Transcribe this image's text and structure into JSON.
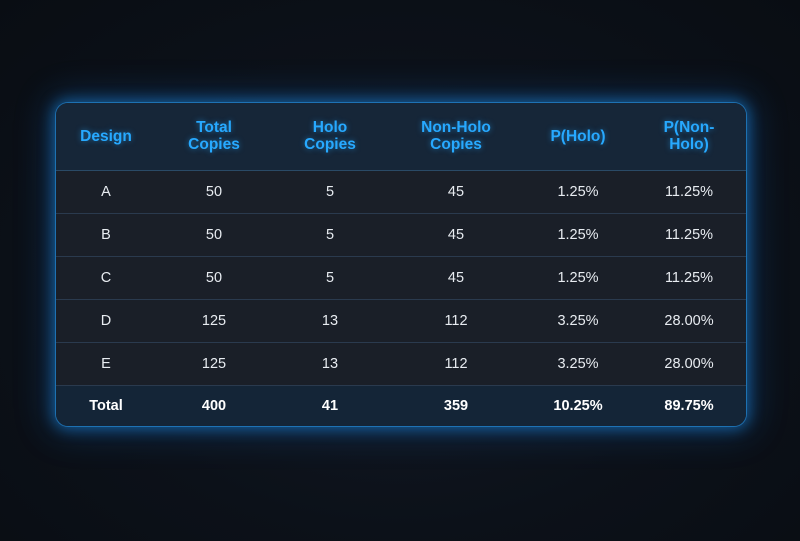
{
  "table": {
    "headers": [
      [
        "Design"
      ],
      [
        "Total",
        "Copies"
      ],
      [
        "Holo",
        "Copies"
      ],
      [
        "Non-Holo",
        "Copies"
      ],
      [
        "P(Holo)"
      ],
      [
        "P(Non-",
        "Holo)"
      ]
    ],
    "rows": [
      [
        "A",
        "50",
        "5",
        "45",
        "1.25%",
        "11.25%"
      ],
      [
        "B",
        "50",
        "5",
        "45",
        "1.25%",
        "11.25%"
      ],
      [
        "C",
        "50",
        "5",
        "45",
        "1.25%",
        "11.25%"
      ],
      [
        "D",
        "125",
        "13",
        "112",
        "3.25%",
        "28.00%"
      ],
      [
        "E",
        "125",
        "13",
        "112",
        "3.25%",
        "28.00%"
      ]
    ],
    "total": [
      "Total",
      "400",
      "41",
      "359",
      "10.25%",
      "89.75%"
    ]
  },
  "colors": {
    "header_text": "#27a9ff",
    "glow": "#1e8ce6",
    "background": "#0b0f16"
  }
}
